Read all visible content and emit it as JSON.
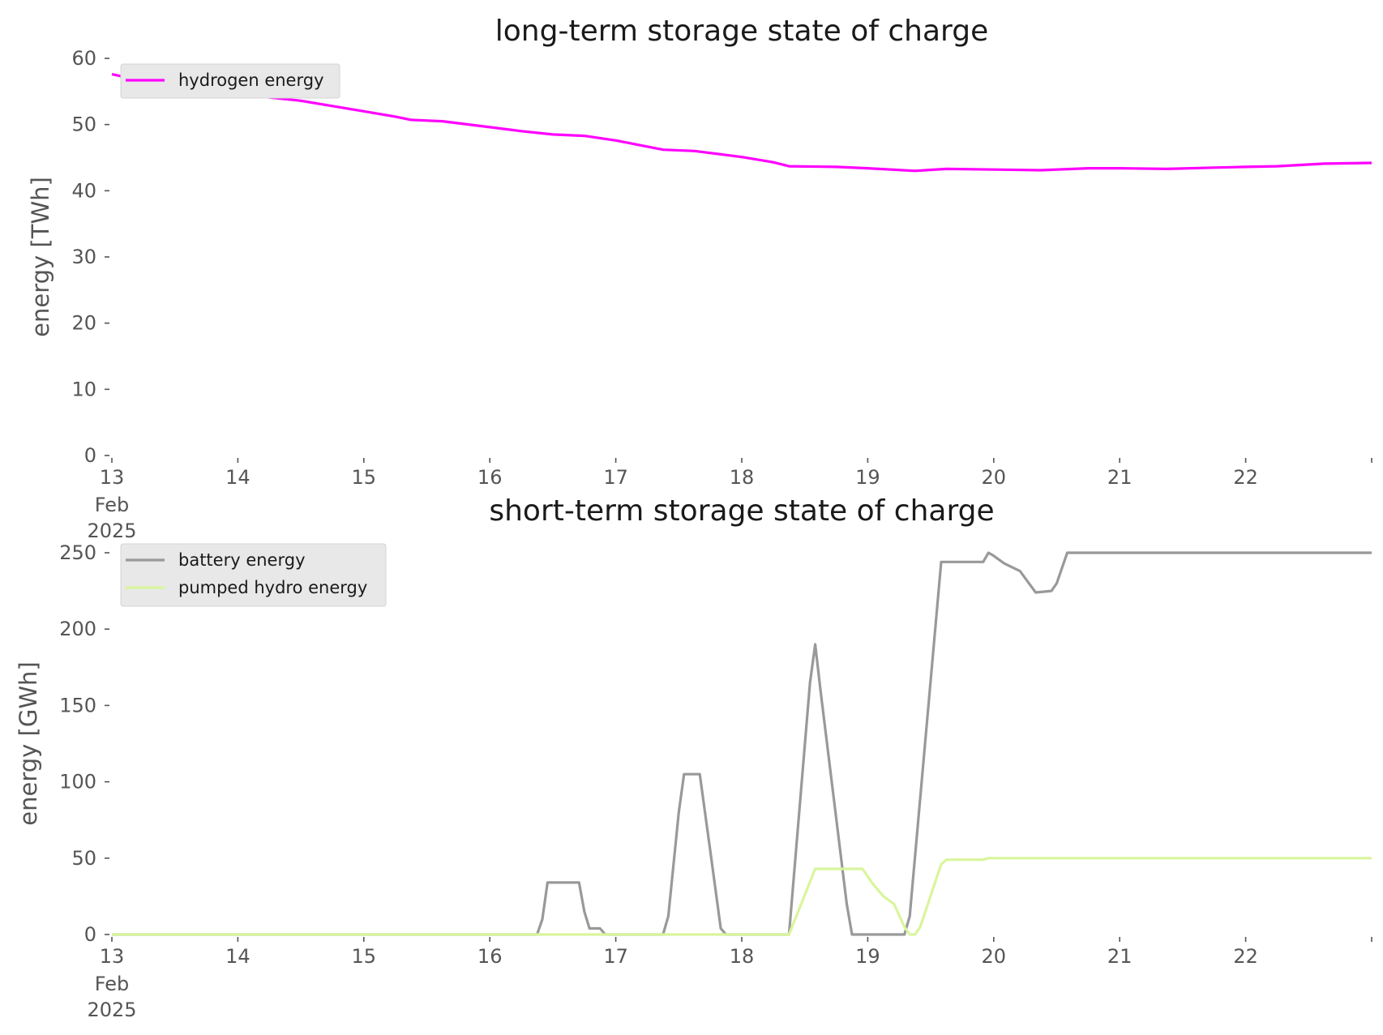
{
  "chart_data": [
    {
      "type": "line",
      "title": "long-term storage state of charge",
      "xlabel": "",
      "ylabel": "energy [TWh]",
      "ylim": [
        0,
        60
      ],
      "yticks": [
        "0",
        "10",
        "20",
        "30",
        "40",
        "50",
        "60"
      ],
      "xlim": [
        "2025-02-13",
        "2025-02-23"
      ],
      "xticks": [
        {
          "label": "13",
          "sub": [
            "Feb",
            "2025"
          ],
          "date": "2025-02-13"
        },
        {
          "label": "14",
          "date": "2025-02-14"
        },
        {
          "label": "15",
          "date": "2025-02-15"
        },
        {
          "label": "16",
          "date": "2025-02-16"
        },
        {
          "label": "17",
          "date": "2025-02-17"
        },
        {
          "label": "18",
          "date": "2025-02-18"
        },
        {
          "label": "19",
          "date": "2025-02-19"
        },
        {
          "label": "20",
          "date": "2025-02-20"
        },
        {
          "label": "21",
          "date": "2025-02-21"
        },
        {
          "label": "22",
          "date": "2025-02-22"
        },
        {
          "label": "",
          "date": "2025-02-23"
        }
      ],
      "grid": false,
      "legend": "upper-left",
      "series": [
        {
          "name": "hydrogen energy",
          "color": "#ff00ff",
          "points": [
            [
              "2025-02-13 00:00",
              57.6
            ],
            [
              "2025-02-13 06:00",
              56.6
            ],
            [
              "2025-02-13 12:00",
              56.0
            ],
            [
              "2025-02-13 18:00",
              55.4
            ],
            [
              "2025-02-14 00:00",
              54.8
            ],
            [
              "2025-02-14 06:00",
              54.1
            ],
            [
              "2025-02-14 12:00",
              53.6
            ],
            [
              "2025-02-14 18:00",
              52.8
            ],
            [
              "2025-02-15 00:00",
              52.0
            ],
            [
              "2025-02-15 06:00",
              51.2
            ],
            [
              "2025-02-15 09:00",
              50.7
            ],
            [
              "2025-02-15 15:00",
              50.5
            ],
            [
              "2025-02-16 00:00",
              49.6
            ],
            [
              "2025-02-16 06:00",
              49.0
            ],
            [
              "2025-02-16 12:00",
              48.5
            ],
            [
              "2025-02-16 18:00",
              48.3
            ],
            [
              "2025-02-17 00:00",
              47.6
            ],
            [
              "2025-02-17 09:00",
              46.2
            ],
            [
              "2025-02-17 15:00",
              46.0
            ],
            [
              "2025-02-18 00:00",
              45.1
            ],
            [
              "2025-02-18 06:00",
              44.3
            ],
            [
              "2025-02-18 09:00",
              43.7
            ],
            [
              "2025-02-18 18:00",
              43.6
            ],
            [
              "2025-02-19 00:00",
              43.4
            ],
            [
              "2025-02-19 09:00",
              43.0
            ],
            [
              "2025-02-19 15:00",
              43.3
            ],
            [
              "2025-02-20 00:00",
              43.2
            ],
            [
              "2025-02-20 09:00",
              43.1
            ],
            [
              "2025-02-20 18:00",
              43.4
            ],
            [
              "2025-02-21 00:00",
              43.4
            ],
            [
              "2025-02-21 09:00",
              43.3
            ],
            [
              "2025-02-21 18:00",
              43.5
            ],
            [
              "2025-02-22 00:00",
              43.6
            ],
            [
              "2025-02-22 06:00",
              43.7
            ],
            [
              "2025-02-22 15:00",
              44.1
            ],
            [
              "2025-02-23 00:00",
              44.2
            ]
          ]
        }
      ]
    },
    {
      "type": "line",
      "title": "short-term storage state of charge",
      "xlabel": "",
      "ylabel": "energy [GWh]",
      "ylim": [
        0,
        250
      ],
      "yticks": [
        "0",
        "50",
        "100",
        "150",
        "200",
        "250"
      ],
      "xlim": [
        "2025-02-13",
        "2025-02-23"
      ],
      "xticks": [
        {
          "label": "13",
          "sub": [
            "Feb",
            "2025"
          ],
          "date": "2025-02-13"
        },
        {
          "label": "14",
          "date": "2025-02-14"
        },
        {
          "label": "15",
          "date": "2025-02-15"
        },
        {
          "label": "16",
          "date": "2025-02-16"
        },
        {
          "label": "17",
          "date": "2025-02-17"
        },
        {
          "label": "18",
          "date": "2025-02-18"
        },
        {
          "label": "19",
          "date": "2025-02-19"
        },
        {
          "label": "20",
          "date": "2025-02-20"
        },
        {
          "label": "21",
          "date": "2025-02-21"
        },
        {
          "label": "22",
          "date": "2025-02-22"
        },
        {
          "label": "",
          "date": "2025-02-23"
        }
      ],
      "grid": false,
      "legend": "upper-left",
      "series": [
        {
          "name": "battery energy",
          "color": "#999999",
          "points": [
            [
              "2025-02-13 00:00",
              0
            ],
            [
              "2025-02-16 09:00",
              0
            ],
            [
              "2025-02-16 10:00",
              10
            ],
            [
              "2025-02-16 11:00",
              34
            ],
            [
              "2025-02-16 17:00",
              34
            ],
            [
              "2025-02-16 18:00",
              15
            ],
            [
              "2025-02-16 19:00",
              4
            ],
            [
              "2025-02-16 21:00",
              4
            ],
            [
              "2025-02-16 22:00",
              0
            ],
            [
              "2025-02-17 09:00",
              0
            ],
            [
              "2025-02-17 10:00",
              12
            ],
            [
              "2025-02-17 12:00",
              80
            ],
            [
              "2025-02-17 13:00",
              105
            ],
            [
              "2025-02-17 16:00",
              105
            ],
            [
              "2025-02-17 18:00",
              55
            ],
            [
              "2025-02-17 20:00",
              4
            ],
            [
              "2025-02-17 21:00",
              0
            ],
            [
              "2025-02-18 09:00",
              0
            ],
            [
              "2025-02-18 13:00",
              165
            ],
            [
              "2025-02-18 14:00",
              190
            ],
            [
              "2025-02-18 15:00",
              160
            ],
            [
              "2025-02-18 20:00",
              20
            ],
            [
              "2025-02-18 21:00",
              0
            ],
            [
              "2025-02-19 06:00",
              0
            ],
            [
              "2025-02-19 07:00",
              0
            ],
            [
              "2025-02-19 08:00",
              12
            ],
            [
              "2025-02-19 14:00",
              244
            ],
            [
              "2025-02-19 22:00",
              244
            ],
            [
              "2025-02-19 23:00",
              250
            ],
            [
              "2025-02-20 00:00",
              248
            ],
            [
              "2025-02-20 02:00",
              243
            ],
            [
              "2025-02-20 05:00",
              238
            ],
            [
              "2025-02-20 08:00",
              224
            ],
            [
              "2025-02-20 11:00",
              225
            ],
            [
              "2025-02-20 12:00",
              230
            ],
            [
              "2025-02-20 14:00",
              250
            ],
            [
              "2025-02-23 00:00",
              250
            ]
          ]
        },
        {
          "name": "pumped hydro energy",
          "color": "#d9f59c",
          "points": [
            [
              "2025-02-13 00:00",
              0
            ],
            [
              "2025-02-18 09:00",
              0
            ],
            [
              "2025-02-18 14:00",
              43
            ],
            [
              "2025-02-18 23:00",
              43
            ],
            [
              "2025-02-19 01:00",
              33
            ],
            [
              "2025-02-19 03:00",
              25
            ],
            [
              "2025-02-19 05:00",
              20
            ],
            [
              "2025-02-19 07:00",
              5
            ],
            [
              "2025-02-19 08:00",
              0
            ],
            [
              "2025-02-19 09:00",
              0
            ],
            [
              "2025-02-19 10:00",
              5
            ],
            [
              "2025-02-19 14:00",
              46
            ],
            [
              "2025-02-19 15:00",
              49
            ],
            [
              "2025-02-19 22:00",
              49
            ],
            [
              "2025-02-19 23:00",
              50
            ],
            [
              "2025-02-23 00:00",
              50
            ]
          ]
        }
      ]
    }
  ]
}
